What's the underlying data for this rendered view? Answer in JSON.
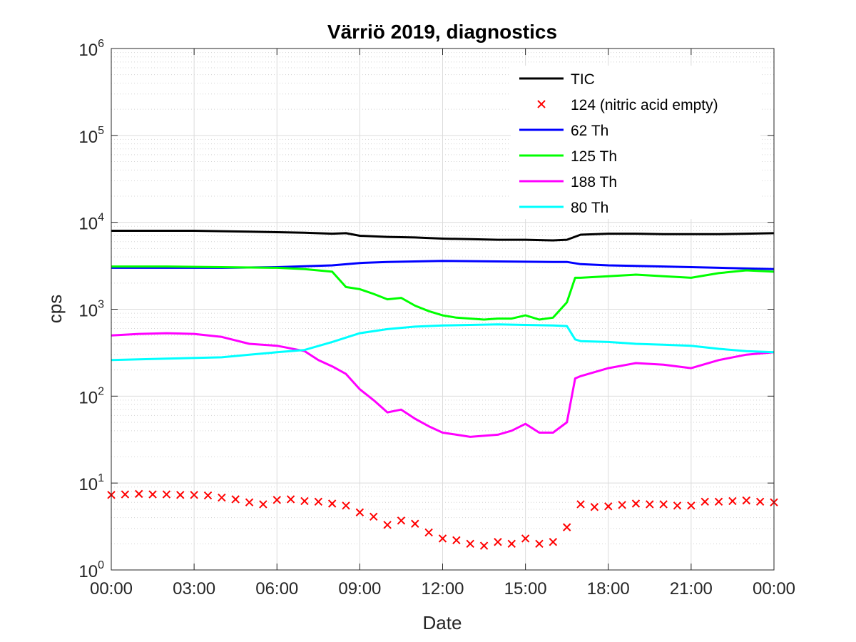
{
  "chart_data": {
    "type": "line",
    "title": "Värriö 2019, diagnostics",
    "xlabel": "Date",
    "ylabel": "cps",
    "x_tick_labels": [
      "00:00",
      "03:00",
      "06:00",
      "09:00",
      "12:00",
      "15:00",
      "18:00",
      "21:00",
      "00:00"
    ],
    "x_tick_hours": [
      0,
      3,
      6,
      9,
      12,
      15,
      18,
      21,
      24
    ],
    "xlim": [
      0,
      24
    ],
    "y_scale": "log",
    "ylim": [
      1,
      1000000
    ],
    "y_tick_values": [
      1,
      10,
      100,
      1000,
      10000,
      100000,
      1000000
    ],
    "y_tick_base": "10",
    "y_tick_exponents": [
      "0",
      "1",
      "2",
      "3",
      "4",
      "5",
      "6"
    ],
    "grid": true,
    "minor_grid": true,
    "legend_position": "top-right",
    "series": [
      {
        "name": "TIC",
        "color": "#000000",
        "style": "line",
        "x": [
          0,
          1,
          2,
          3,
          4,
          5,
          6,
          7,
          8,
          8.5,
          9,
          10,
          11,
          12,
          13,
          14,
          15,
          16,
          16.5,
          17,
          18,
          19,
          20,
          21,
          22,
          23,
          24
        ],
        "y": [
          8000,
          8000,
          8000,
          8000,
          7900,
          7800,
          7700,
          7600,
          7400,
          7500,
          7000,
          6800,
          6700,
          6500,
          6400,
          6300,
          6300,
          6200,
          6300,
          7200,
          7400,
          7400,
          7300,
          7300,
          7300,
          7400,
          7500
        ]
      },
      {
        "name": "124 (nitric acid empty)",
        "color": "#ff0000",
        "style": "marker",
        "x": [
          0,
          0.5,
          1,
          1.5,
          2,
          2.5,
          3,
          3.5,
          4,
          4.5,
          5,
          5.5,
          6,
          6.5,
          7,
          7.5,
          8,
          8.5,
          9,
          9.5,
          10,
          10.5,
          11,
          11.5,
          12,
          12.5,
          13,
          13.5,
          14,
          14.5,
          15,
          15.5,
          16,
          16.5,
          17,
          17.5,
          18,
          18.5,
          19,
          19.5,
          20,
          20.5,
          21,
          21.5,
          22,
          22.5,
          23,
          23.5,
          24
        ],
        "y": [
          7.3,
          7.4,
          7.5,
          7.4,
          7.4,
          7.3,
          7.3,
          7.2,
          6.8,
          6.5,
          6.0,
          5.7,
          6.4,
          6.5,
          6.2,
          6.1,
          5.8,
          5.5,
          4.6,
          4.1,
          3.3,
          3.7,
          3.4,
          2.7,
          2.3,
          2.2,
          2.0,
          1.9,
          2.1,
          2.0,
          2.3,
          2.0,
          2.1,
          3.1,
          5.7,
          5.3,
          5.4,
          5.6,
          5.8,
          5.7,
          5.7,
          5.5,
          5.5,
          6.1,
          6.1,
          6.2,
          6.3,
          6.1,
          6.0
        ]
      },
      {
        "name": "62 Th",
        "color": "#0000ff",
        "style": "line",
        "x": [
          0,
          2,
          4,
          6,
          8,
          9,
          10,
          12,
          14,
          16,
          16.5,
          17,
          18,
          20,
          22,
          24
        ],
        "y": [
          3000,
          3000,
          3000,
          3050,
          3200,
          3400,
          3500,
          3600,
          3550,
          3500,
          3500,
          3300,
          3200,
          3100,
          3000,
          2900
        ]
      },
      {
        "name": "125 Th",
        "color": "#00ff00",
        "style": "line",
        "x": [
          0,
          2,
          4,
          6,
          7,
          8,
          8.5,
          9,
          9.5,
          10,
          10.5,
          11,
          11.5,
          12,
          12.5,
          13,
          13.5,
          14,
          14.5,
          15,
          15.5,
          16,
          16.5,
          16.8,
          17,
          18,
          19,
          20,
          21,
          22,
          23,
          24
        ],
        "y": [
          3100,
          3100,
          3050,
          3000,
          2900,
          2700,
          1800,
          1700,
          1500,
          1300,
          1350,
          1100,
          950,
          850,
          800,
          780,
          760,
          780,
          780,
          850,
          760,
          800,
          1200,
          2300,
          2300,
          2400,
          2500,
          2400,
          2300,
          2600,
          2800,
          2700
        ]
      },
      {
        "name": "188 Th",
        "color": "#ff00ff",
        "style": "line",
        "x": [
          0,
          1,
          2,
          3,
          4,
          5,
          6,
          7,
          7.5,
          8,
          8.5,
          9,
          9.5,
          10,
          10.5,
          11,
          11.5,
          12,
          12.5,
          13,
          13.5,
          14,
          14.5,
          15,
          15.5,
          16,
          16.5,
          16.8,
          17,
          18,
          19,
          20,
          21,
          22,
          23,
          24
        ],
        "y": [
          500,
          520,
          530,
          520,
          480,
          400,
          380,
          330,
          260,
          220,
          180,
          120,
          90,
          65,
          70,
          55,
          45,
          38,
          36,
          34,
          35,
          36,
          40,
          48,
          38,
          38,
          50,
          160,
          170,
          210,
          240,
          230,
          210,
          260,
          300,
          320
        ]
      },
      {
        "name": "80 Th",
        "color": "#00ffff",
        "style": "line",
        "x": [
          0,
          2,
          4,
          5,
          6,
          7,
          8,
          9,
          10,
          11,
          12,
          13,
          14,
          15,
          16,
          16.5,
          16.8,
          17,
          18,
          19,
          20,
          21,
          22,
          23,
          24
        ],
        "y": [
          260,
          270,
          280,
          300,
          320,
          340,
          420,
          530,
          590,
          630,
          650,
          660,
          670,
          660,
          650,
          640,
          450,
          430,
          420,
          400,
          390,
          380,
          350,
          330,
          320
        ]
      }
    ]
  }
}
